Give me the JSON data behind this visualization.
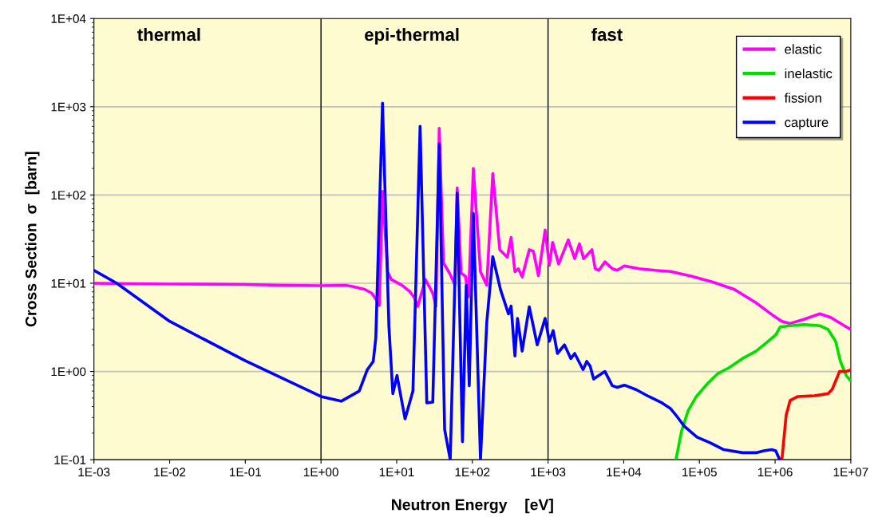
{
  "chart_data": {
    "type": "line",
    "xlabel": "Neutron Energy    [eV]",
    "ylabel": "Cross Section  σ  [barn]",
    "log": "xy",
    "grid": "y",
    "legend": "top right",
    "line_style": "solid",
    "marker": "none",
    "xlim": [
      0.001,
      10000000
    ],
    "ylim": [
      0.1,
      10000
    ],
    "xticks": [
      {
        "value": 0.001,
        "label": "1E-03"
      },
      {
        "value": 0.01,
        "label": "1E-02"
      },
      {
        "value": 0.1,
        "label": "1E-01"
      },
      {
        "value": 1,
        "label": "1E+00"
      },
      {
        "value": 10,
        "label": "1E+01"
      },
      {
        "value": 100,
        "label": "1E+02"
      },
      {
        "value": 1000,
        "label": "1E+03"
      },
      {
        "value": 10000,
        "label": "1E+04"
      },
      {
        "value": 100000,
        "label": "1E+05"
      },
      {
        "value": 1000000,
        "label": "1E+06"
      },
      {
        "value": 10000000,
        "label": "1E+07"
      }
    ],
    "yticks": [
      {
        "value": 0.1,
        "label": "1E-01"
      },
      {
        "value": 1,
        "label": "1E+00"
      },
      {
        "value": 10,
        "label": "1E+01"
      },
      {
        "value": 100,
        "label": "1E+02"
      },
      {
        "value": 1000,
        "label": "1E+03"
      },
      {
        "value": 10000,
        "label": "1E+04"
      }
    ],
    "ref_lines": [
      {
        "axis": "x",
        "value": 1,
        "color": "#000000"
      },
      {
        "axis": "x",
        "value": 1000,
        "color": "#000000"
      }
    ],
    "annotations": [
      "thermal",
      "epi-thermal",
      "fast"
    ],
    "series": [
      {
        "name": "elastic",
        "color": "#ff00ff",
        "x": [
          0.001,
          0.01,
          0.1,
          0.3,
          1,
          2.1,
          2.6,
          3.8,
          4.7,
          5.5,
          5.9,
          6.5,
          7.6,
          8.5,
          11.7,
          14.8,
          17,
          19,
          24,
          30,
          33,
          36.5,
          41.5,
          50,
          59,
          63,
          71,
          81,
          89,
          103,
          128,
          155,
          186,
          230,
          290,
          325,
          365,
          405,
          455,
          565,
          640,
          745,
          915,
          1040,
          1150,
          1380,
          1850,
          2250,
          2600,
          2950,
          3800,
          4200,
          4700,
          5650,
          7050,
          8200,
          10200,
          15800,
          25800,
          41500,
          79000,
          150000,
          290000,
          560000,
          910000,
          1230000,
          1580000,
          2400000,
          3900000,
          5400000,
          9300000,
          10000000
        ],
        "values": [
          10,
          9.8,
          9.7,
          9.5,
          9.4,
          9.5,
          9.2,
          8.5,
          7.7,
          6.3,
          5.6,
          110,
          13.5,
          11,
          9.5,
          8.1,
          6.9,
          5.5,
          11,
          7.7,
          5.5,
          570,
          17,
          13,
          9.5,
          120,
          13,
          12,
          7,
          200,
          13.5,
          9.5,
          175,
          24,
          19.7,
          33,
          13.5,
          14.6,
          11.8,
          24,
          23,
          12.2,
          40,
          16,
          29,
          16.5,
          31,
          19,
          28,
          19,
          24,
          14.6,
          14,
          17.5,
          14.6,
          14,
          15.7,
          14.6,
          14,
          13.6,
          12,
          10.3,
          8.5,
          6,
          4.4,
          3.7,
          3.5,
          3.9,
          4.5,
          4.1,
          3.1,
          3
        ]
      },
      {
        "name": "inelastic",
        "color": "#00e000",
        "x": [
          49000,
          58000,
          71000,
          91000,
          130000,
          176000,
          245000,
          370000,
          560000,
          760000,
          1020000,
          1170000,
          1580000,
          2400000,
          3900000,
          5000000,
          6300000,
          7300000,
          8700000,
          10000000
        ],
        "values": [
          0.1,
          0.21,
          0.36,
          0.52,
          0.74,
          0.95,
          1.1,
          1.4,
          1.7,
          2.1,
          2.6,
          3.2,
          3.3,
          3.4,
          3.3,
          3,
          2.2,
          1.3,
          0.9,
          0.78
        ]
      },
      {
        "name": "fission",
        "color": "#ff0000",
        "x": [
          1230000,
          1400000,
          1580000,
          2000000,
          3300000,
          5000000,
          5700000,
          7100000,
          8700000,
          10000000
        ],
        "values": [
          0.1,
          0.32,
          0.47,
          0.52,
          0.53,
          0.56,
          0.63,
          1,
          1,
          1.04
        ]
      },
      {
        "name": "capture",
        "color": "#0000ff",
        "x": [
          0.001,
          0.002,
          0.01,
          0.1,
          1,
          1.85,
          3.2,
          4.1,
          4.9,
          5.3,
          6.5,
          7.9,
          8.9,
          10.1,
          12.9,
          16.4,
          20.4,
          25,
          30,
          36.5,
          43,
          51,
          63,
          74,
          83,
          91,
          103,
          128,
          155,
          186,
          236,
          300,
          325,
          365,
          395,
          455,
          565,
          720,
          915,
          1040,
          1170,
          1330,
          1650,
          2000,
          2250,
          2900,
          3250,
          3600,
          4000,
          4700,
          5650,
          7050,
          8200,
          10200,
          14700,
          21500,
          32000,
          41500,
          49000,
          63000,
          93000,
          140000,
          210000,
          370000,
          560000,
          710000,
          900000,
          1020000,
          1150000
        ],
        "values": [
          14,
          10,
          3.7,
          1.32,
          0.52,
          0.46,
          0.6,
          1.05,
          1.3,
          2.4,
          1100,
          3.2,
          0.56,
          0.9,
          0.29,
          0.6,
          600,
          0.44,
          0.45,
          380,
          0.22,
          0.1,
          105,
          0.16,
          9.5,
          0.69,
          62,
          0.1,
          3.6,
          20,
          8.4,
          4.5,
          5.5,
          1.5,
          4,
          1.7,
          5.4,
          2,
          4,
          2.2,
          2.9,
          1.6,
          2,
          1.4,
          1.6,
          1.05,
          1.3,
          1.15,
          0.82,
          0.9,
          1,
          0.69,
          0.66,
          0.7,
          0.62,
          0.52,
          0.44,
          0.38,
          0.32,
          0.24,
          0.18,
          0.155,
          0.13,
          0.12,
          0.12,
          0.126,
          0.13,
          0.126,
          0.1
        ]
      }
    ]
  }
}
